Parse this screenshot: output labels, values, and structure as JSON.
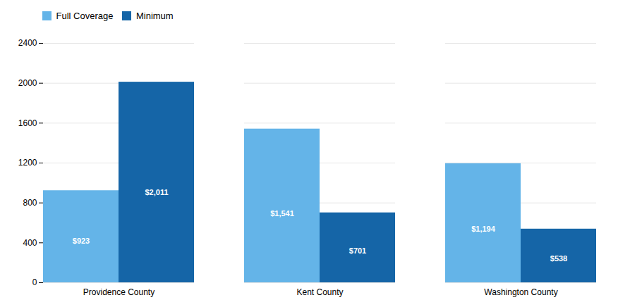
{
  "chart_data": {
    "type": "bar",
    "categories": [
      "Providence County",
      "Kent County",
      "Washington County"
    ],
    "series": [
      {
        "name": "Full Coverage",
        "color": "#64b4e8",
        "values": [
          923,
          1541,
          1194
        ],
        "value_labels": [
          "$923",
          "$1,541",
          "$1,194"
        ]
      },
      {
        "name": "Minimum",
        "color": "#1565a7",
        "values": [
          2011,
          701,
          538
        ],
        "value_labels": [
          "$2,011",
          "$701",
          "$538"
        ]
      }
    ],
    "ylim": [
      0,
      2400
    ],
    "yticks": [
      0,
      400,
      800,
      1200,
      1600,
      2000,
      2400
    ],
    "grid": true,
    "legend": "top",
    "data_labels": true
  }
}
